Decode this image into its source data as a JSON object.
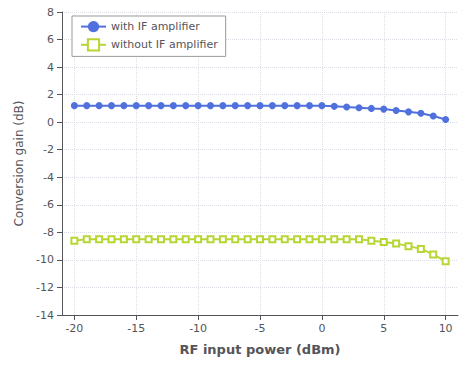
{
  "chart_data": {
    "type": "line",
    "xlabel": "RF input power (dBm)",
    "ylabel": "Conversion gain (dB)",
    "xlim": [
      -21,
      11
    ],
    "ylim": [
      -14,
      8
    ],
    "xticks": [
      -20,
      -15,
      -10,
      -5,
      0,
      5,
      10
    ],
    "yticks": [
      -14,
      -12,
      -10,
      -8,
      -6,
      -4,
      -2,
      0,
      2,
      4,
      6,
      8
    ],
    "grid": true,
    "legend": "upper left",
    "series": [
      {
        "name": "with IF amplifier",
        "marker": "circle",
        "x": [
          -20,
          -19,
          -18,
          -17,
          -16,
          -15,
          -14,
          -13,
          -12,
          -11,
          -10,
          -9,
          -8,
          -7,
          -6,
          -5,
          -4,
          -3,
          -2,
          -1,
          0,
          1,
          2,
          3,
          4,
          5,
          6,
          7,
          8,
          9,
          10
        ],
        "values": [
          1.2,
          1.2,
          1.2,
          1.2,
          1.2,
          1.2,
          1.2,
          1.2,
          1.2,
          1.2,
          1.2,
          1.2,
          1.2,
          1.2,
          1.2,
          1.2,
          1.2,
          1.2,
          1.2,
          1.2,
          1.2,
          1.15,
          1.1,
          1.05,
          1.0,
          0.95,
          0.85,
          0.75,
          0.65,
          0.45,
          0.2
        ]
      },
      {
        "name": "without IF amplifier",
        "marker": "square",
        "x": [
          -20,
          -19,
          -18,
          -17,
          -16,
          -15,
          -14,
          -13,
          -12,
          -11,
          -10,
          -9,
          -8,
          -7,
          -6,
          -5,
          -4,
          -3,
          -2,
          -1,
          0,
          1,
          2,
          3,
          4,
          5,
          6,
          7,
          8,
          9,
          10
        ],
        "values": [
          -8.6,
          -8.5,
          -8.5,
          -8.5,
          -8.5,
          -8.5,
          -8.5,
          -8.5,
          -8.5,
          -8.5,
          -8.5,
          -8.5,
          -8.5,
          -8.5,
          -8.5,
          -8.5,
          -8.5,
          -8.5,
          -8.5,
          -8.5,
          -8.5,
          -8.5,
          -8.5,
          -8.5,
          -8.6,
          -8.7,
          -8.8,
          -9.0,
          -9.2,
          -9.6,
          -10.1
        ]
      }
    ]
  }
}
